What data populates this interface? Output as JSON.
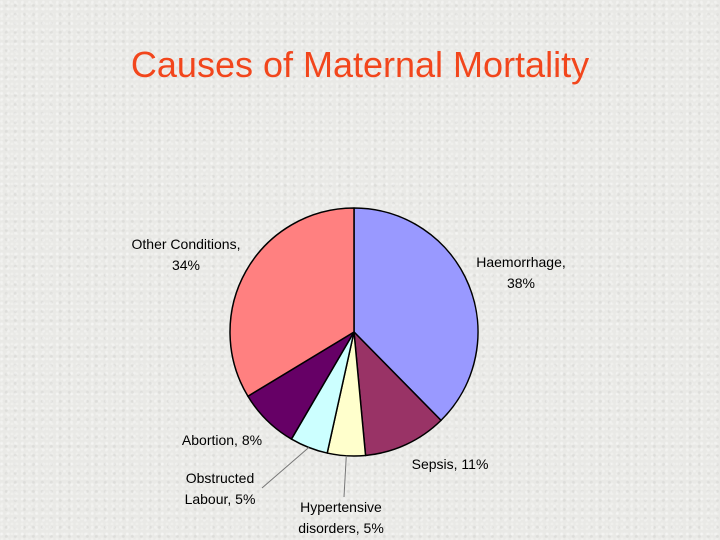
{
  "title": "Causes of Maternal Mortality",
  "chart_data": {
    "type": "pie",
    "title": "Causes of Maternal Mortality",
    "start": "top, clockwise",
    "slices": [
      {
        "name": "Haemorrhage",
        "value": 38,
        "color": "#9999ff",
        "label_line1": "Haemorrhage,",
        "label_line2": "38%"
      },
      {
        "name": "Sepsis",
        "value": 11,
        "color": "#993366",
        "label_line1": "Sepsis, 11%",
        "label_line2": ""
      },
      {
        "name": "Hypertensive disorders",
        "value": 5,
        "color": "#ffffcc",
        "label_line1": "Hypertensive",
        "label_line2": "disorders, 5%"
      },
      {
        "name": "Obstructed Labour",
        "value": 5,
        "color": "#ccffff",
        "label_line1": "Obstructed",
        "label_line2": "Labour, 5%"
      },
      {
        "name": "Abortion",
        "value": 8,
        "color": "#660066",
        "label_line1": "Abortion, 8%",
        "label_line2": ""
      },
      {
        "name": "Other Conditions",
        "value": 34,
        "color": "#ff8080",
        "label_line1": "Other Conditions,",
        "label_line2": "34%"
      }
    ]
  }
}
